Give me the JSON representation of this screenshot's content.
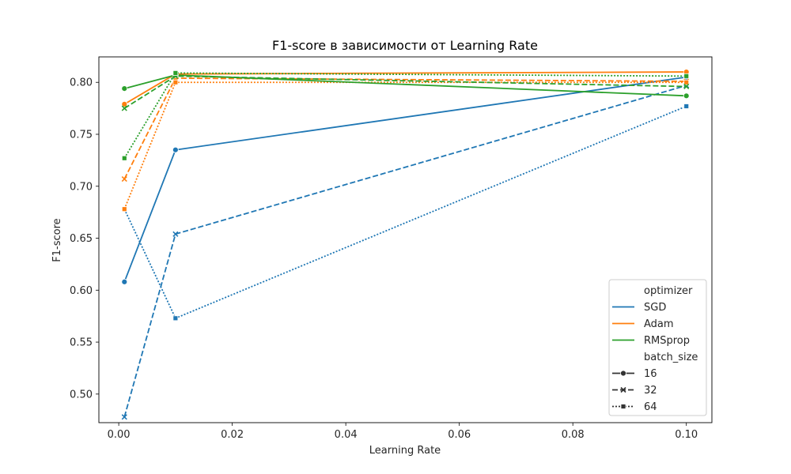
{
  "chart_data": {
    "type": "line",
    "title": "F1-score в зависимости от Learning Rate",
    "xlabel": "Learning Rate",
    "ylabel": "F1-score",
    "xlim": [
      -0.0035,
      0.1045
    ],
    "ylim": [
      0.4725,
      0.8245
    ],
    "xticks": [
      "0.00",
      "0.02",
      "0.04",
      "0.06",
      "0.08",
      "0.10"
    ],
    "yticks": [
      "0.50",
      "0.55",
      "0.60",
      "0.65",
      "0.70",
      "0.75",
      "0.80"
    ],
    "x": [
      0.001,
      0.01,
      0.1
    ],
    "grid": false,
    "legend": {
      "placement": "lower-right",
      "hue_title": "optimizer",
      "style_title": "batch_size"
    },
    "optimizers": [
      {
        "name": "SGD",
        "color": "#1f77b4"
      },
      {
        "name": "Adam",
        "color": "#ff7f0e"
      },
      {
        "name": "RMSprop",
        "color": "#2ca02c"
      }
    ],
    "batch_sizes": [
      {
        "name": "16",
        "marker": "circle",
        "dash": "solid"
      },
      {
        "name": "32",
        "marker": "x",
        "dash": "dashed"
      },
      {
        "name": "64",
        "marker": "square",
        "dash": "dotted"
      }
    ],
    "series": [
      {
        "optimizer": "SGD",
        "batch_size": "16",
        "values": [
          0.608,
          0.735,
          0.805
        ]
      },
      {
        "optimizer": "SGD",
        "batch_size": "32",
        "values": [
          0.478,
          0.654,
          0.797
        ]
      },
      {
        "optimizer": "SGD",
        "batch_size": "64",
        "values": [
          0.678,
          0.573,
          0.777
        ]
      },
      {
        "optimizer": "Adam",
        "batch_size": "16",
        "values": [
          0.779,
          0.808,
          0.81
        ]
      },
      {
        "optimizer": "Adam",
        "batch_size": "32",
        "values": [
          0.707,
          0.804,
          0.801
        ]
      },
      {
        "optimizer": "Adam",
        "batch_size": "64",
        "values": [
          0.678,
          0.8,
          0.8
        ]
      },
      {
        "optimizer": "RMSprop",
        "batch_size": "16",
        "values": [
          0.794,
          0.807,
          0.787
        ]
      },
      {
        "optimizer": "RMSprop",
        "batch_size": "32",
        "values": [
          0.775,
          0.806,
          0.796
        ]
      },
      {
        "optimizer": "RMSprop",
        "batch_size": "64",
        "values": [
          0.727,
          0.809,
          0.806
        ]
      }
    ]
  }
}
